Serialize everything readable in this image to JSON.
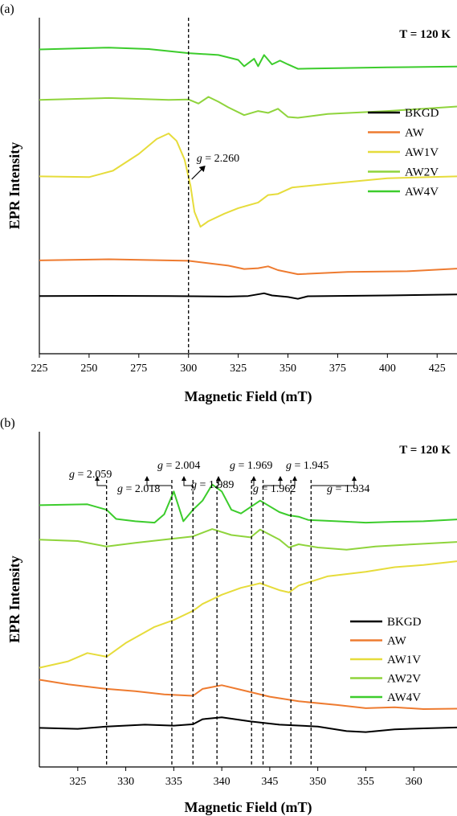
{
  "chart_data": [
    {
      "panel": "(a)",
      "type": "line",
      "xlabel": "Magnetic Field (mT)",
      "ylabel": "EPR Intensity",
      "annotation_temp": "T = 120 K",
      "xlim": [
        225,
        435
      ],
      "xticks": [
        "225",
        "250",
        "275",
        "300",
        "325",
        "350",
        "375",
        "400",
        "425"
      ],
      "grid": false,
      "legend_position": "right",
      "vline_x": 300,
      "g_annotation": {
        "label": "g",
        "value": "= 2.260"
      },
      "series": [
        {
          "name": "BKGD",
          "color": "#000000",
          "points": [
            [
              225,
              0.45
            ],
            [
              260,
              0.5
            ],
            [
              290,
              0.45
            ],
            [
              320,
              0.3
            ],
            [
              330,
              0.45
            ],
            [
              338,
              1.2
            ],
            [
              342,
              0.6
            ],
            [
              350,
              0.2
            ],
            [
              355,
              -0.3
            ],
            [
              360,
              0.4
            ],
            [
              400,
              0.6
            ],
            [
              435,
              0.9
            ]
          ]
        },
        {
          "name": "AW",
          "color": "#ee7b30",
          "points": [
            [
              225,
              10.0
            ],
            [
              260,
              10.3
            ],
            [
              300,
              9.9
            ],
            [
              320,
              8.6
            ],
            [
              328,
              7.7
            ],
            [
              335,
              7.9
            ],
            [
              340,
              8.4
            ],
            [
              345,
              7.4
            ],
            [
              355,
              6.3
            ],
            [
              380,
              6.9
            ],
            [
              410,
              7.1
            ],
            [
              435,
              7.8
            ]
          ]
        },
        {
          "name": "AW1V",
          "color": "#e6dc3b",
          "points": [
            [
              225,
              32.5
            ],
            [
              250,
              32.3
            ],
            [
              262,
              34.0
            ],
            [
              275,
              38.5
            ],
            [
              284,
              42.5
            ],
            [
              290,
              44.0
            ],
            [
              294,
              42.0
            ],
            [
              298,
              37.0
            ],
            [
              301,
              30.0
            ],
            [
              303,
              23.0
            ],
            [
              306,
              19.0
            ],
            [
              310,
              20.5
            ],
            [
              318,
              22.5
            ],
            [
              325,
              24.0
            ],
            [
              335,
              25.5
            ],
            [
              340,
              27.5
            ],
            [
              345,
              27.8
            ],
            [
              352,
              29.5
            ],
            [
              370,
              30.5
            ],
            [
              400,
              32.0
            ],
            [
              435,
              32.5
            ]
          ]
        },
        {
          "name": "AW2V",
          "color": "#8fd43c",
          "points": [
            [
              225,
              53.0
            ],
            [
              260,
              53.5
            ],
            [
              290,
              53.0
            ],
            [
              300,
              53.1
            ],
            [
              305,
              52.0
            ],
            [
              310,
              53.8
            ],
            [
              315,
              52.5
            ],
            [
              320,
              51.0
            ],
            [
              328,
              48.9
            ],
            [
              335,
              50.0
            ],
            [
              340,
              49.5
            ],
            [
              345,
              50.6
            ],
            [
              350,
              48.4
            ],
            [
              355,
              48.2
            ],
            [
              370,
              49.2
            ],
            [
              400,
              50.0
            ],
            [
              435,
              51.2
            ]
          ]
        },
        {
          "name": "AW4V",
          "color": "#3ccc2c",
          "points": [
            [
              225,
              66.5
            ],
            [
              260,
              67.0
            ],
            [
              280,
              66.6
            ],
            [
              300,
              65.5
            ],
            [
              315,
              65.0
            ],
            [
              325,
              63.7
            ],
            [
              328,
              62.0
            ],
            [
              333,
              64.0
            ],
            [
              335,
              62.0
            ],
            [
              338,
              65.0
            ],
            [
              342,
              62.5
            ],
            [
              346,
              63.5
            ],
            [
              350,
              62.5
            ],
            [
              355,
              61.3
            ],
            [
              375,
              61.5
            ],
            [
              400,
              61.7
            ],
            [
              435,
              61.9
            ]
          ]
        }
      ]
    },
    {
      "panel": "(b)",
      "type": "line",
      "xlabel": "Magnetic Field (mT)",
      "ylabel": "EPR Intensity",
      "annotation_temp": "T = 120 K",
      "xlim": [
        321,
        364.5
      ],
      "xticks": [
        "325",
        "330",
        "335",
        "340",
        "345",
        "350",
        "355",
        "360"
      ],
      "grid": false,
      "legend_position": "bottom-right",
      "g_lines": [
        {
          "x": 328.0,
          "value": "= 2.059"
        },
        {
          "x": 334.8,
          "value": "= 2.018"
        },
        {
          "x": 337.0,
          "value": "= 2.004"
        },
        {
          "x": 339.5,
          "value": "= 1.989"
        },
        {
          "x": 343.1,
          "value": "= 1.969"
        },
        {
          "x": 344.3,
          "value": "= 1.962"
        },
        {
          "x": 347.2,
          "value": "= 1.945"
        },
        {
          "x": 349.3,
          "value": "= 1.934"
        }
      ],
      "series": [
        {
          "name": "BKGD",
          "color": "#000000",
          "points": [
            [
              321,
              0.5
            ],
            [
              325,
              0.3
            ],
            [
              328,
              0.8
            ],
            [
              332,
              1.2
            ],
            [
              335,
              1.0
            ],
            [
              337,
              1.3
            ],
            [
              338,
              2.4
            ],
            [
              340,
              2.8
            ],
            [
              343,
              1.9
            ],
            [
              346,
              1.2
            ],
            [
              350,
              0.8
            ],
            [
              353,
              -0.2
            ],
            [
              355,
              -0.4
            ],
            [
              358,
              0.2
            ],
            [
              361,
              0.4
            ],
            [
              364.5,
              0.6
            ]
          ]
        },
        {
          "name": "AW",
          "color": "#ee7b30",
          "points": [
            [
              321,
              11.0
            ],
            [
              324,
              10.0
            ],
            [
              328,
              9.0
            ],
            [
              331,
              8.5
            ],
            [
              334,
              7.8
            ],
            [
              337,
              7.5
            ],
            [
              338,
              9.0
            ],
            [
              340,
              9.8
            ],
            [
              342,
              8.8
            ],
            [
              345,
              7.3
            ],
            [
              348,
              6.3
            ],
            [
              352,
              5.5
            ],
            [
              355,
              4.8
            ],
            [
              358,
              5.0
            ],
            [
              361,
              4.6
            ],
            [
              364.5,
              4.7
            ]
          ]
        },
        {
          "name": "AW1V",
          "color": "#e6dc3b",
          "points": [
            [
              321,
              13.6
            ],
            [
              324,
              15.0
            ],
            [
              326,
              16.8
            ],
            [
              328,
              16.0
            ],
            [
              330,
              19.0
            ],
            [
              333,
              22.5
            ],
            [
              335,
              24.0
            ],
            [
              337,
              26.0
            ],
            [
              338,
              27.5
            ],
            [
              340,
              29.5
            ],
            [
              342,
              31.0
            ],
            [
              344,
              32.0
            ],
            [
              346,
              30.5
            ],
            [
              347,
              30.0
            ],
            [
              348,
              31.5
            ],
            [
              351,
              33.5
            ],
            [
              355,
              34.5
            ],
            [
              358,
              35.5
            ],
            [
              361,
              36.0
            ],
            [
              364.5,
              36.8
            ]
          ]
        },
        {
          "name": "AW2V",
          "color": "#8fd43c",
          "points": [
            [
              321,
              41.5
            ],
            [
              325,
              41.2
            ],
            [
              328,
              40.0
            ],
            [
              331,
              40.8
            ],
            [
              334,
              41.5
            ],
            [
              337,
              42.2
            ],
            [
              339,
              43.8
            ],
            [
              341,
              42.5
            ],
            [
              343,
              42.0
            ],
            [
              344,
              43.7
            ],
            [
              346,
              41.5
            ],
            [
              347,
              39.8
            ],
            [
              348,
              40.5
            ],
            [
              350,
              39.8
            ],
            [
              353,
              39.3
            ],
            [
              356,
              40.0
            ],
            [
              360,
              40.5
            ],
            [
              364.5,
              41.0
            ]
          ]
        },
        {
          "name": "AW4V",
          "color": "#3ccc2c",
          "points": [
            [
              321,
              49.0
            ],
            [
              326,
              49.2
            ],
            [
              328,
              48.0
            ],
            [
              329,
              46.0
            ],
            [
              331,
              45.5
            ],
            [
              333,
              45.2
            ],
            [
              334,
              47.0
            ],
            [
              335,
              52.0
            ],
            [
              336,
              45.5
            ],
            [
              337,
              48.0
            ],
            [
              338,
              50.0
            ],
            [
              339,
              53.5
            ],
            [
              340,
              52.0
            ],
            [
              341,
              48.0
            ],
            [
              342,
              47.2
            ],
            [
              344,
              50.0
            ],
            [
              346,
              47.5
            ],
            [
              347,
              46.8
            ],
            [
              348,
              46.5
            ],
            [
              349,
              45.8
            ],
            [
              352,
              45.5
            ],
            [
              355,
              45.2
            ],
            [
              358,
              45.4
            ],
            [
              361,
              45.5
            ],
            [
              364.5,
              45.9
            ]
          ]
        }
      ]
    }
  ]
}
